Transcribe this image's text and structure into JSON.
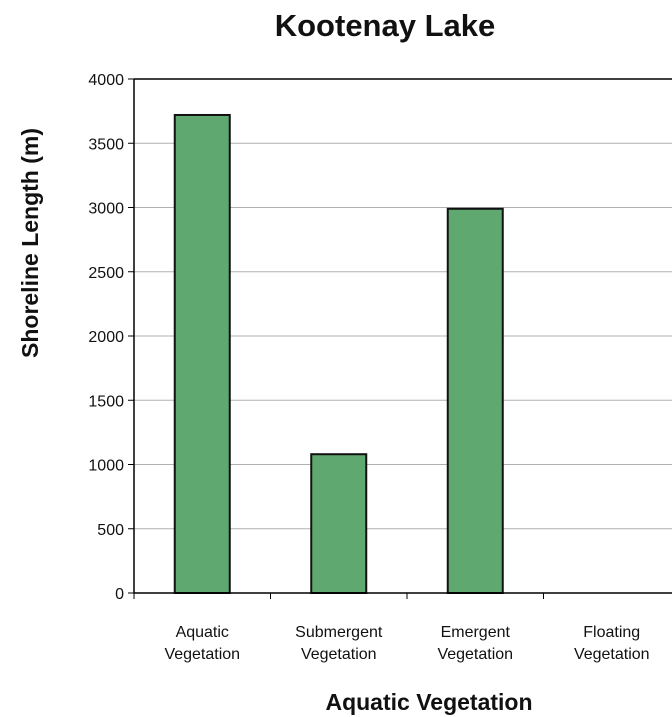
{
  "chart_data": {
    "type": "bar",
    "title": "Kootenay Lake",
    "xlabel": "Aquatic Vegetation",
    "ylabel": "Shoreline Length (m)",
    "categories": [
      [
        "Aquatic",
        "Vegetation"
      ],
      [
        "Submergent",
        "Vegetation"
      ],
      [
        "Emergent",
        "Vegetation"
      ],
      [
        "Floating",
        "Vegetation"
      ]
    ],
    "values": [
      3720,
      1080,
      2990,
      0
    ],
    "ylim": [
      0,
      4000
    ],
    "yticks": [
      "0",
      "500",
      "1000",
      "1500",
      "2000",
      "2500",
      "3000",
      "3500",
      "4000"
    ],
    "grid": true,
    "legend": "none",
    "colors": {
      "bar_fill": "#5fa86f",
      "bar_stroke": "#111111",
      "grid": "#b0b0b0",
      "axis": "#000000"
    }
  }
}
